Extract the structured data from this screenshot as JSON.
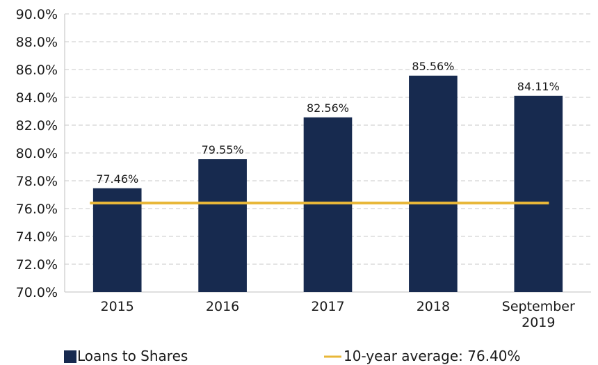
{
  "chart_data": {
    "type": "bar",
    "categories": [
      "2015",
      "2016",
      "2017",
      "2018",
      "September 2019"
    ],
    "series": [
      {
        "name": "Loans to Shares",
        "color": "#172a4f",
        "values": [
          77.46,
          79.55,
          82.56,
          85.56,
          84.11
        ],
        "value_labels": [
          "77.46%",
          "79.55%",
          "82.56%",
          "85.56%",
          "84.11%"
        ]
      }
    ],
    "reference_line": {
      "name": "10-year average: 76.40%",
      "value": 76.4,
      "color": "#e8b739"
    },
    "ylim": [
      70,
      90
    ],
    "yticks": [
      {
        "value": 70,
        "label": "70.0%"
      },
      {
        "value": 72,
        "label": "72.0%"
      },
      {
        "value": 74,
        "label": "74.0%"
      },
      {
        "value": 76,
        "label": "76.0%"
      },
      {
        "value": 78,
        "label": "78.0%"
      },
      {
        "value": 80,
        "label": "80.0%"
      },
      {
        "value": 82,
        "label": "82.0%"
      },
      {
        "value": 84,
        "label": "84.0%"
      },
      {
        "value": 86,
        "label": "86.0%"
      },
      {
        "value": 88,
        "label": "88.0%"
      },
      {
        "value": 90,
        "label": "90.0%"
      }
    ],
    "grid": true,
    "legend": "bottom"
  }
}
